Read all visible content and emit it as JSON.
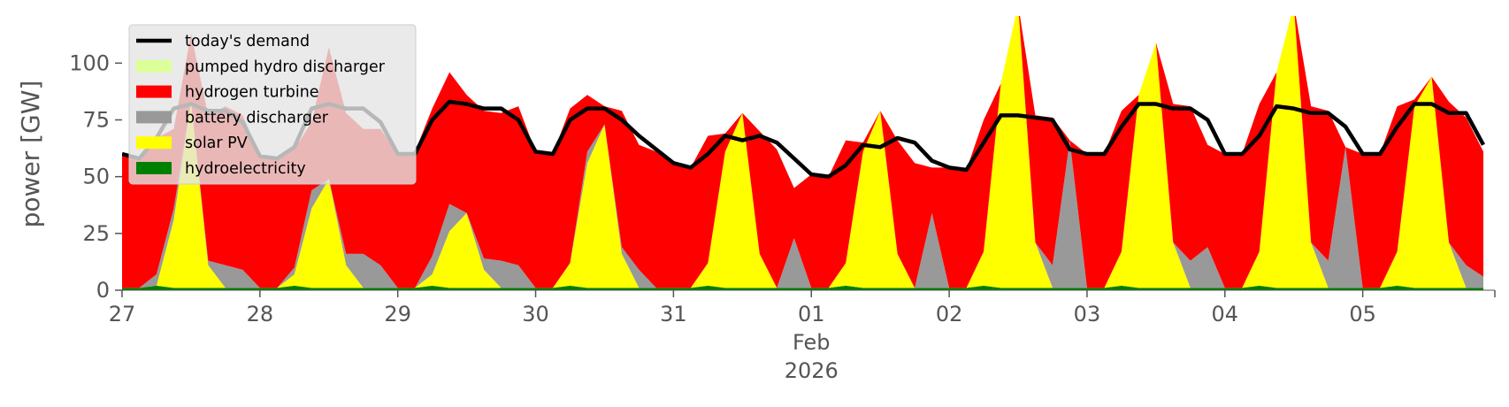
{
  "chart_data": {
    "type": "area",
    "ylabel": "power [GW]",
    "ylim": [
      0,
      120
    ],
    "yticks": [
      0,
      25,
      50,
      75,
      100
    ],
    "xlim": [
      "2026-01-27T00:00",
      "2026-02-05T23:00"
    ],
    "time_step_hours": 3,
    "xticks": [
      {
        "date": "2026-01-27",
        "label": "27"
      },
      {
        "date": "2026-01-28",
        "label": "28"
      },
      {
        "date": "2026-01-29",
        "label": "29"
      },
      {
        "date": "2026-01-30",
        "label": "30"
      },
      {
        "date": "2026-01-31",
        "label": "31"
      },
      {
        "date": "2026-02-01",
        "label": "01",
        "sub1": "Feb",
        "sub2": "2026"
      },
      {
        "date": "2026-02-02",
        "label": "02"
      },
      {
        "date": "2026-02-03",
        "label": "03"
      },
      {
        "date": "2026-02-04",
        "label": "04"
      },
      {
        "date": "2026-02-05",
        "label": "05"
      }
    ],
    "grid": false,
    "legend_position": "top-left",
    "stacked_series": [
      {
        "name": "hydroelectricity",
        "color": "#008000",
        "values": [
          1,
          1,
          2,
          1,
          1,
          1,
          1,
          1,
          1,
          1,
          2,
          1,
          1,
          1,
          1,
          1,
          1,
          1,
          2,
          1,
          1,
          1,
          1,
          1,
          1,
          1,
          2,
          1,
          1,
          1,
          1,
          1,
          1,
          1,
          2,
          1,
          1,
          1,
          1,
          1,
          1,
          1,
          2,
          1,
          1,
          1,
          1,
          1,
          1,
          1,
          2,
          1,
          1,
          1,
          1,
          1,
          1,
          1,
          2,
          1,
          1,
          1,
          1,
          1,
          1,
          1,
          2,
          1,
          1,
          1,
          1,
          1,
          1,
          1,
          2,
          1,
          1,
          1,
          1,
          1
        ]
      },
      {
        "name": "solar PV",
        "color": "#ffff00",
        "values": [
          0,
          0,
          0,
          30,
          82,
          10,
          0,
          0,
          0,
          0,
          5,
          35,
          48,
          10,
          0,
          0,
          0,
          0,
          5,
          25,
          33,
          8,
          0,
          0,
          0,
          0,
          10,
          55,
          72,
          15,
          0,
          0,
          0,
          0,
          10,
          60,
          77,
          15,
          0,
          0,
          0,
          0,
          10,
          60,
          78,
          15,
          0,
          0,
          0,
          0,
          15,
          90,
          125,
          20,
          0,
          0,
          0,
          0,
          15,
          85,
          108,
          20,
          0,
          0,
          0,
          0,
          15,
          95,
          125,
          20,
          0,
          0,
          0,
          0,
          15,
          80,
          93,
          20,
          0,
          0
        ]
      },
      {
        "name": "battery discharger",
        "color": "#999999",
        "values": [
          0,
          0,
          5,
          5,
          0,
          2,
          10,
          8,
          0,
          0,
          3,
          8,
          0,
          5,
          15,
          10,
          0,
          0,
          8,
          12,
          0,
          5,
          12,
          10,
          0,
          0,
          0,
          5,
          0,
          3,
          8,
          0,
          0,
          0,
          0,
          0,
          0,
          0,
          0,
          22,
          0,
          0,
          0,
          0,
          0,
          0,
          0,
          33,
          0,
          0,
          0,
          0,
          0,
          0,
          10,
          65,
          0,
          0,
          0,
          0,
          0,
          0,
          12,
          18,
          0,
          0,
          0,
          0,
          0,
          0,
          12,
          62,
          0,
          0,
          0,
          0,
          0,
          0,
          10,
          5
        ]
      },
      {
        "name": "hydrogen turbine",
        "color": "#ff0000",
        "values": [
          59,
          57,
          60,
          35,
          30,
          64,
          70,
          68,
          58,
          57,
          52,
          30,
          58,
          62,
          55,
          60,
          59,
          60,
          65,
          58,
          52,
          65,
          65,
          70,
          60,
          59,
          68,
          25,
          8,
          60,
          55,
          60,
          55,
          53,
          56,
          8,
          0,
          54,
          61,
          22,
          50,
          49,
          54,
          4,
          0,
          50,
          55,
          20,
          53,
          52,
          58,
          0,
          0,
          56,
          65,
          0,
          59,
          59,
          62,
          0,
          0,
          61,
          68,
          45,
          59,
          59,
          65,
          0,
          0,
          60,
          66,
          0,
          59,
          59,
          64,
          3,
          0,
          62,
          65,
          55
        ]
      },
      {
        "name": "pumped hydro discharger",
        "color": "#ddff99",
        "values": [
          0,
          0,
          0,
          0,
          0,
          0,
          0,
          0,
          0,
          0,
          0,
          0,
          0,
          0,
          0,
          0,
          0,
          0,
          0,
          0,
          0,
          0,
          0,
          0,
          0,
          0,
          0,
          0,
          0,
          0,
          0,
          0,
          0,
          0,
          0,
          0,
          0,
          0,
          0,
          0,
          0,
          0,
          0,
          0,
          0,
          0,
          0,
          0,
          0,
          0,
          0,
          0,
          0,
          0,
          0,
          0,
          0,
          0,
          0,
          0,
          0,
          0,
          0,
          0,
          0,
          0,
          0,
          0,
          0,
          0,
          0,
          0,
          0,
          0,
          0,
          0,
          0,
          0,
          0,
          0
        ]
      }
    ],
    "line_series": [
      {
        "name": "today's demand",
        "color": "#000000",
        "values": [
          60,
          58,
          67,
          80,
          82,
          79,
          79,
          74,
          59,
          58,
          63,
          80,
          82,
          80,
          80,
          74,
          60,
          60,
          75,
          83,
          82,
          80,
          80,
          75,
          61,
          60,
          75,
          80,
          80,
          75,
          68,
          62,
          56,
          54,
          60,
          68,
          66,
          68,
          65,
          58,
          51,
          50,
          55,
          64,
          63,
          67,
          65,
          57,
          54,
          53,
          65,
          77,
          77,
          76,
          75,
          62,
          60,
          60,
          72,
          82,
          82,
          80,
          80,
          75,
          60,
          60,
          68,
          81,
          80,
          78,
          78,
          72,
          60,
          60,
          72,
          82,
          82,
          78,
          78,
          64
        ]
      }
    ],
    "legend": [
      {
        "label": "today's demand",
        "kind": "line",
        "color": "#000000"
      },
      {
        "label": "pumped hydro discharger",
        "kind": "patch",
        "color": "#ddff99"
      },
      {
        "label": "hydrogen turbine",
        "kind": "patch",
        "color": "#ff0000"
      },
      {
        "label": "battery discharger",
        "kind": "patch",
        "color": "#999999"
      },
      {
        "label": "solar PV",
        "kind": "patch",
        "color": "#ffff00"
      },
      {
        "label": "hydroelectricity",
        "kind": "patch",
        "color": "#008000"
      }
    ]
  }
}
